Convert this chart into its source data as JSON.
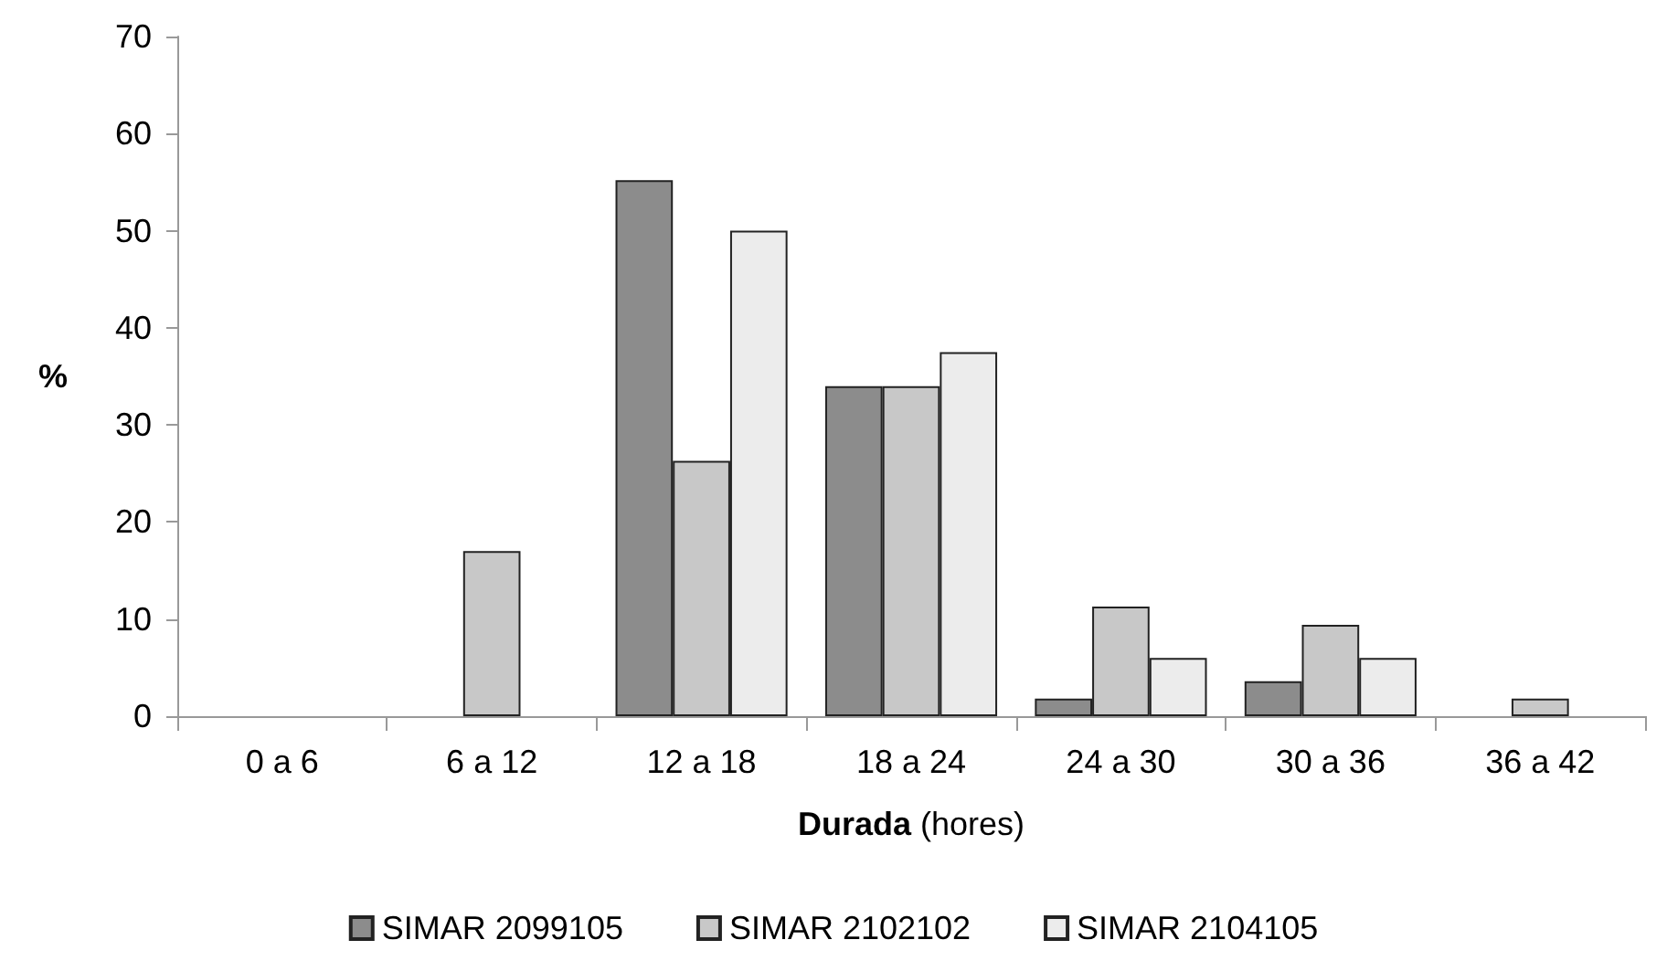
{
  "chart_data": {
    "type": "bar",
    "xlabel": "Durada (hores)",
    "ylabel": "%",
    "categories": [
      "0 a 6",
      "6 a 12",
      "12 a 18",
      "18 a 24",
      "24 a 30",
      "30 a 36",
      "36 a 42"
    ],
    "series": [
      {
        "name": "SIMAR 2099105",
        "color": "#8c8c8c",
        "values": [
          null,
          null,
          55.2,
          34,
          1.8,
          3.6,
          null
        ]
      },
      {
        "name": "SIMAR 2102102",
        "color": "#c8c8c8",
        "values": [
          null,
          17,
          26.3,
          34,
          11.3,
          9.4,
          1.8
        ]
      },
      {
        "name": "SIMAR 2104105",
        "color": "#ececec",
        "values": [
          null,
          null,
          50,
          37.5,
          6,
          6,
          null
        ]
      }
    ],
    "ylim": [
      0,
      70
    ],
    "yticks": [
      0,
      10,
      20,
      30,
      40,
      50,
      60,
      70
    ],
    "grid": false,
    "legend": "bottom"
  }
}
